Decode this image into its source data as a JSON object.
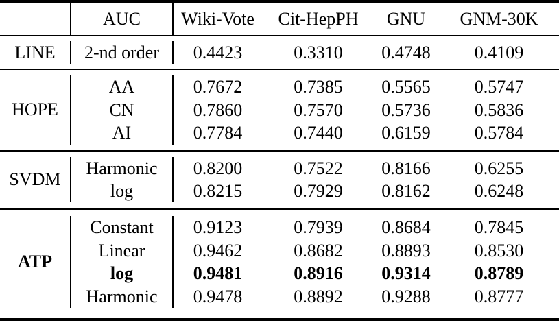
{
  "table": {
    "header": {
      "corner": "",
      "metric_label": "AUC",
      "datasets": [
        "Wiki-Vote",
        "Cit-HepPH",
        "GNU",
        "GNM-30K"
      ]
    },
    "groups": [
      {
        "name": "LINE",
        "rows": [
          {
            "variant": "2-nd order",
            "values": [
              "0.4423",
              "0.3310",
              "0.4748",
              "0.4109"
            ]
          }
        ]
      },
      {
        "name": "HOPE",
        "rows": [
          {
            "variant": "AA",
            "values": [
              "0.7672",
              "0.7385",
              "0.5565",
              "0.5747"
            ]
          },
          {
            "variant": "CN",
            "values": [
              "0.7860",
              "0.7570",
              "0.5736",
              "0.5836"
            ]
          },
          {
            "variant": "AI",
            "values": [
              "0.7784",
              "0.7440",
              "0.6159",
              "0.5784"
            ]
          }
        ]
      },
      {
        "name": "SVDM",
        "rows": [
          {
            "variant": "Harmonic",
            "values": [
              "0.8200",
              "0.7522",
              "0.8166",
              "0.6255"
            ]
          },
          {
            "variant": "log",
            "values": [
              "0.8215",
              "0.7929",
              "0.8162",
              "0.6248"
            ]
          }
        ]
      },
      {
        "name": "ATP",
        "bold": true,
        "rows": [
          {
            "variant": "Constant",
            "values": [
              "0.9123",
              "0.7939",
              "0.8684",
              "0.7845"
            ]
          },
          {
            "variant": "Linear",
            "values": [
              "0.9462",
              "0.8682",
              "0.8893",
              "0.8530"
            ]
          },
          {
            "variant": "log",
            "bold": true,
            "values": [
              "0.9481",
              "0.8916",
              "0.9314",
              "0.8789"
            ]
          },
          {
            "variant": "Harmonic",
            "values": [
              "0.9478",
              "0.8892",
              "0.9288",
              "0.8777"
            ]
          }
        ]
      }
    ]
  }
}
